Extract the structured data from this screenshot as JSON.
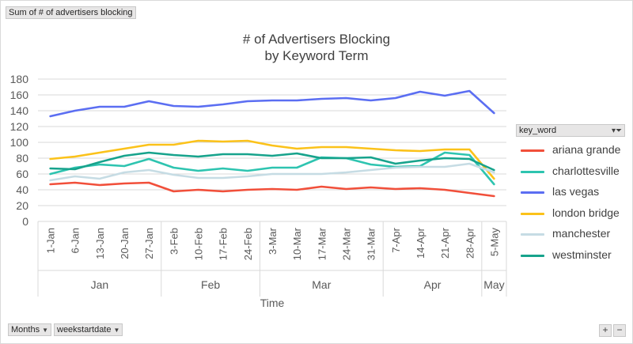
{
  "pivot": {
    "value_field": "Sum of # of advertisers blocking",
    "legend_field": "key_word",
    "axis_fields": [
      "Months",
      "weekstartdate"
    ],
    "zoom_in": "+",
    "zoom_out": "−"
  },
  "colors": {
    "ariana grande": "#f14f3a",
    "charlottesville": "#2ec4b0",
    "las vegas": "#5b6ef2",
    "london bridge": "#fbc21a",
    "manchester": "#c6dce4",
    "westminster": "#17a38c"
  },
  "chart_data": {
    "type": "line",
    "title": "# of Advertisers Blocking\nby Keyword Term",
    "xlabel": "Time",
    "ylabel": "",
    "ylim": [
      0,
      180
    ],
    "yticks": [
      0,
      20,
      40,
      60,
      80,
      100,
      120,
      140,
      160,
      180
    ],
    "grid": true,
    "legend": "right",
    "categories": [
      "1-Jan",
      "6-Jan",
      "13-Jan",
      "20-Jan",
      "27-Jan",
      "3-Feb",
      "10-Feb",
      "17-Feb",
      "24-Feb",
      "3-Mar",
      "10-Mar",
      "17-Mar",
      "24-Mar",
      "31-Mar",
      "7-Apr",
      "14-Apr",
      "21-Apr",
      "28-Apr",
      "5-May"
    ],
    "groups": [
      {
        "label": "Jan",
        "start": 0,
        "end": 4
      },
      {
        "label": "Feb",
        "start": 5,
        "end": 8
      },
      {
        "label": "Mar",
        "start": 9,
        "end": 13
      },
      {
        "label": "Apr",
        "start": 14,
        "end": 17
      },
      {
        "label": "May",
        "start": 18,
        "end": 18
      }
    ],
    "series": [
      {
        "name": "ariana grande",
        "values": [
          47,
          49,
          46,
          48,
          49,
          38,
          40,
          38,
          40,
          41,
          40,
          44,
          41,
          43,
          41,
          42,
          40,
          36,
          32
        ]
      },
      {
        "name": "charlottesville",
        "values": [
          60,
          68,
          72,
          70,
          79,
          68,
          64,
          67,
          64,
          68,
          68,
          81,
          80,
          72,
          69,
          70,
          87,
          84,
          47
        ]
      },
      {
        "name": "las vegas",
        "values": [
          133,
          140,
          145,
          145,
          152,
          146,
          145,
          148,
          152,
          153,
          153,
          155,
          156,
          153,
          156,
          164,
          159,
          165,
          137
        ]
      },
      {
        "name": "london bridge",
        "values": [
          79,
          82,
          87,
          92,
          97,
          97,
          102,
          101,
          102,
          96,
          92,
          94,
          94,
          92,
          90,
          89,
          91,
          91,
          54
        ]
      },
      {
        "name": "manchester",
        "values": [
          52,
          57,
          54,
          62,
          65,
          59,
          55,
          55,
          57,
          60,
          60,
          60,
          62,
          65,
          68,
          69,
          69,
          73,
          62
        ]
      },
      {
        "name": "westminster",
        "values": [
          67,
          66,
          75,
          83,
          87,
          84,
          82,
          85,
          85,
          83,
          86,
          80,
          80,
          81,
          73,
          77,
          80,
          79,
          65
        ]
      }
    ]
  }
}
